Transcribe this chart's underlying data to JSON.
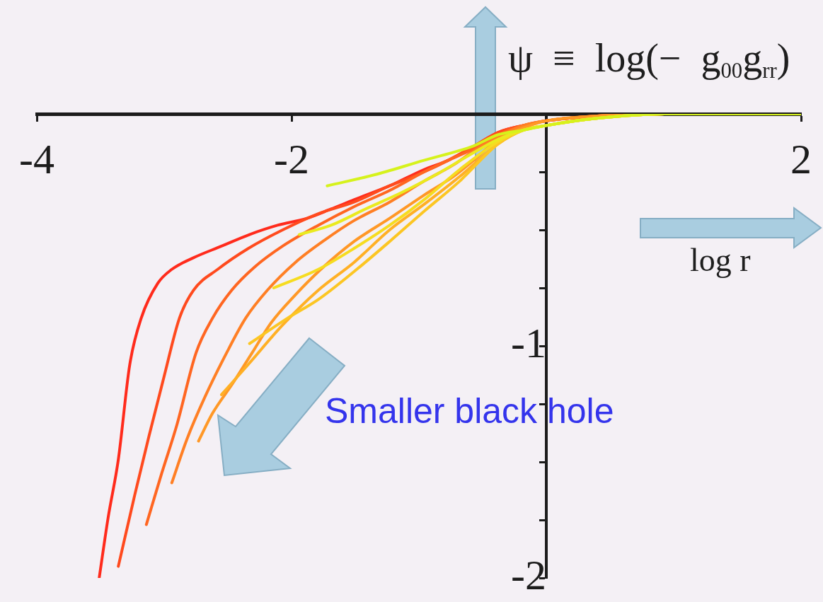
{
  "chart_data": {
    "type": "line",
    "xlabel": "log r",
    "ylabel": "ψ ≡ log(− g$_{00}$g$_{rr}$)",
    "annotations": [
      "Smaller black hole"
    ],
    "xlim": [
      -4,
      2
    ],
    "ylim": [
      -2,
      0
    ],
    "xticks": [
      -4,
      -2,
      2
    ],
    "yticks": [
      {
        "value": -0.25,
        "label": null
      },
      {
        "value": -0.5,
        "label": null
      },
      {
        "value": -0.75,
        "label": null
      },
      -1,
      {
        "value": -1.25,
        "label": null
      },
      {
        "value": -1.5,
        "label": null
      },
      {
        "value": -1.75,
        "label": null
      },
      -2
    ],
    "marker": "none",
    "series": [
      {
        "color": "#ff2b1c",
        "x": [
          -3.51,
          -3.44,
          -3.36,
          -3.27,
          -3.18,
          -3.05,
          -2.94,
          -2.77,
          -2.55,
          -2.33,
          -2.11,
          -1.88,
          -1.69,
          -1.51,
          -1.23,
          -0.96,
          -0.77,
          -0.57,
          -0.38,
          -0.18,
          0,
          0.38,
          0.93,
          2
        ],
        "values": [
          -2,
          -1.74,
          -1.49,
          -1.08,
          -0.88,
          -0.73,
          -0.67,
          -0.62,
          -0.57,
          -0.52,
          -0.48,
          -0.45,
          -0.41,
          -0.37,
          -0.31,
          -0.24,
          -0.2,
          -0.14,
          -0.08,
          -0.05,
          -0.03,
          -0.01,
          0,
          0
        ]
      },
      {
        "color": "#ff4a1e",
        "x": [
          -3.36,
          -3.23,
          -3.12,
          -3,
          -2.88,
          -2.77,
          -2.58,
          -2.34,
          -2.07,
          -1.79,
          -1.51,
          -1.23,
          -0.96,
          -0.77,
          -0.57,
          -0.38,
          -0.18,
          0,
          0.38,
          0.93,
          2
        ],
        "values": [
          -1.95,
          -1.64,
          -1.39,
          -1.13,
          -0.88,
          -0.76,
          -0.67,
          -0.58,
          -0.5,
          -0.43,
          -0.38,
          -0.31,
          -0.25,
          -0.2,
          -0.14,
          -0.08,
          -0.05,
          -0.03,
          -0.01,
          0,
          0
        ]
      },
      {
        "color": "#ff6621",
        "x": [
          -3.14,
          -3.02,
          -2.9,
          -2.75,
          -2.62,
          -2.47,
          -2.29,
          -2.07,
          -1.79,
          -1.51,
          -1.23,
          -0.96,
          -0.77,
          -0.57,
          -0.38,
          -0.18,
          0,
          0.38,
          0.93,
          2
        ],
        "values": [
          -1.77,
          -1.55,
          -1.34,
          -1.03,
          -0.88,
          -0.76,
          -0.66,
          -0.57,
          -0.48,
          -0.4,
          -0.33,
          -0.25,
          -0.2,
          -0.15,
          -0.09,
          -0.05,
          -0.03,
          -0.01,
          0,
          0
        ]
      },
      {
        "color": "#ff7f24",
        "x": [
          -2.94,
          -2.82,
          -2.68,
          -2.51,
          -2.36,
          -2.19,
          -1.97,
          -1.73,
          -1.51,
          -1.23,
          -0.96,
          -0.73,
          -0.57,
          -0.38,
          -0.18,
          0,
          0.38,
          0.93,
          2
        ],
        "values": [
          -1.59,
          -1.4,
          -1.22,
          -1.03,
          -0.88,
          -0.76,
          -0.64,
          -0.54,
          -0.46,
          -0.38,
          -0.29,
          -0.22,
          -0.16,
          -0.1,
          -0.05,
          -0.03,
          -0.01,
          0,
          0
        ]
      },
      {
        "color": "#ff9826",
        "x": [
          -2.73,
          -2.62,
          -2.46,
          -2.31,
          -2.16,
          -1.97,
          -1.77,
          -1.51,
          -1.23,
          -0.96,
          -0.73,
          -0.57,
          -0.38,
          -0.18,
          0,
          0.38,
          0.93,
          2
        ],
        "values": [
          -1.41,
          -1.29,
          -1.16,
          -1.03,
          -0.9,
          -0.78,
          -0.67,
          -0.55,
          -0.45,
          -0.35,
          -0.27,
          -0.2,
          -0.11,
          -0.06,
          -0.03,
          -0.01,
          0,
          0
        ]
      },
      {
        "color": "#ffb025",
        "x": [
          -2.55,
          -2.34,
          -2.07,
          -1.79,
          -1.51,
          -1.23,
          -0.96,
          -0.68,
          -0.38,
          -0.18,
          0,
          0.38,
          0.93,
          2
        ],
        "values": [
          -1.21,
          -1.08,
          -0.91,
          -0.76,
          -0.64,
          -0.5,
          -0.39,
          -0.27,
          -0.13,
          -0.07,
          -0.05,
          -0.02,
          0,
          0
        ]
      },
      {
        "color": "#fcc623",
        "x": [
          -2.33,
          -2.03,
          -1.79,
          -1.51,
          -1.23,
          -0.96,
          -0.68,
          -0.38,
          -0.18,
          0,
          0.38,
          0.93,
          2
        ],
        "values": [
          -0.99,
          -0.88,
          -0.8,
          -0.68,
          -0.55,
          -0.42,
          -0.29,
          -0.13,
          -0.07,
          -0.05,
          -0.02,
          0,
          0
        ]
      },
      {
        "color": "#f6dc20",
        "x": [
          -2.14,
          -1.79,
          -1.51,
          -1.23,
          -0.96,
          -0.68,
          -0.38,
          -0.18,
          0,
          0.38,
          0.93,
          2
        ],
        "values": [
          -0.75,
          -0.67,
          -0.58,
          -0.48,
          -0.37,
          -0.24,
          -0.12,
          -0.07,
          -0.05,
          -0.02,
          0,
          0
        ]
      },
      {
        "color": "#eaea1f",
        "x": [
          -1.94,
          -1.69,
          -1.42,
          -1.14,
          -0.86,
          -0.58,
          -0.38,
          -0.18,
          0,
          0.38,
          0.93,
          2
        ],
        "values": [
          -0.52,
          -0.48,
          -0.41,
          -0.34,
          -0.26,
          -0.17,
          -0.11,
          -0.07,
          -0.05,
          -0.02,
          0,
          0
        ]
      },
      {
        "color": "#d6f21c",
        "x": [
          -1.72,
          -1.33,
          -0.96,
          -0.58,
          -0.38,
          -0.18,
          0,
          0.38,
          0.93,
          2
        ],
        "values": [
          -0.31,
          -0.26,
          -0.2,
          -0.14,
          -0.09,
          -0.07,
          -0.05,
          -0.02,
          0,
          0
        ]
      }
    ]
  }
}
